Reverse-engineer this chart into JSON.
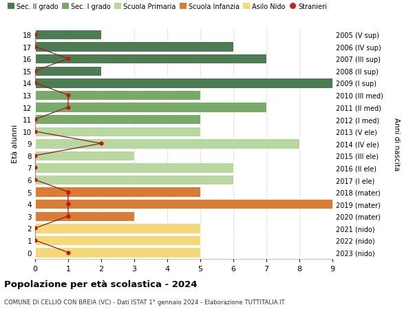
{
  "ages": [
    18,
    17,
    16,
    15,
    14,
    13,
    12,
    11,
    10,
    9,
    8,
    7,
    6,
    5,
    4,
    3,
    2,
    1,
    0
  ],
  "right_labels": [
    "2005 (V sup)",
    "2006 (IV sup)",
    "2007 (III sup)",
    "2008 (II sup)",
    "2009 (I sup)",
    "2010 (III med)",
    "2011 (II med)",
    "2012 (I med)",
    "2013 (V ele)",
    "2014 (IV ele)",
    "2015 (III ele)",
    "2016 (II ele)",
    "2017 (I ele)",
    "2018 (mater)",
    "2019 (mater)",
    "2020 (mater)",
    "2021 (nido)",
    "2022 (nido)",
    "2023 (nido)"
  ],
  "bar_values": [
    2,
    6,
    7,
    2,
    9,
    5,
    7,
    5,
    5,
    8,
    3,
    6,
    6,
    5,
    9,
    3,
    5,
    5,
    5
  ],
  "bar_colors": [
    "#4d7c52",
    "#4d7c52",
    "#4d7c52",
    "#4d7c52",
    "#4d7c52",
    "#7aaa6a",
    "#7aaa6a",
    "#7aaa6a",
    "#b8d8a0",
    "#b8d8a0",
    "#b8d8a0",
    "#b8d8a0",
    "#b8d8a0",
    "#d97c35",
    "#d97c35",
    "#d97c35",
    "#f5d87a",
    "#f5d87a",
    "#f5d87a"
  ],
  "stranieri_values": [
    0,
    0,
    1,
    0,
    0,
    1,
    1,
    0,
    0,
    2,
    0,
    0,
    0,
    1,
    1,
    1,
    0,
    0,
    1
  ],
  "legend_labels": [
    "Sec. II grado",
    "Sec. I grado",
    "Scuola Primaria",
    "Scuola Infanzia",
    "Asilo Nido",
    "Stranieri"
  ],
  "legend_colors": [
    "#4d7c52",
    "#7aaa6a",
    "#b8d8a0",
    "#d97c35",
    "#f5d87a",
    "#cc2222"
  ],
  "ylabel": "Età alunni",
  "right_ylabel": "Anni di nascita",
  "title": "Popolazione per età scolastica - 2024",
  "subtitle": "COMUNE DI CELLIO CON BREIA (VC) - Dati ISTAT 1° gennaio 2024 - Elaborazione TUTTITALIA.IT",
  "xlim": [
    0,
    9
  ],
  "ylim": [
    -0.55,
    18.55
  ],
  "bg_color": "#ffffff",
  "grid_color": "#cccccc",
  "bar_height": 0.82,
  "bar_edgecolor": "#ffffff",
  "stranieri_line_color": "#8b2020",
  "stranieri_dot_color": "#cc1111",
  "stranieri_dot_size": 20
}
